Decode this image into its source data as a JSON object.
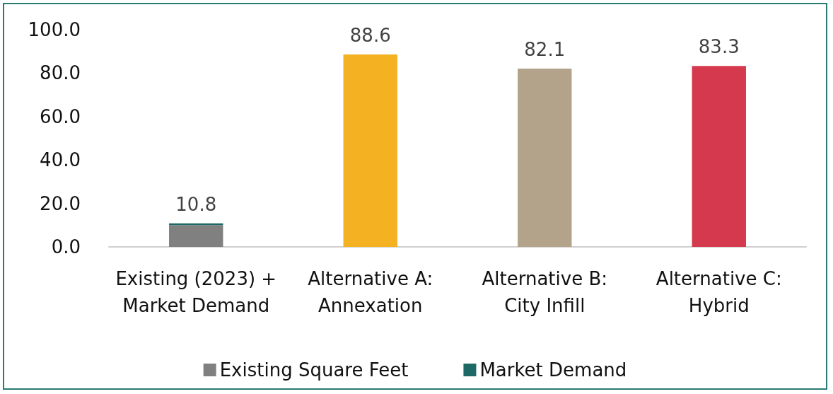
{
  "chart_data": {
    "type": "bar",
    "stacked": true,
    "categories": [
      "Existing (2023) +\nMarket Demand",
      "Alternative A:\nAnnexation",
      "Alternative B:\nCity Infill",
      "Alternative C:\nHybrid"
    ],
    "series": [
      {
        "name": "Existing Square Feet",
        "color": "#808080",
        "values": [
          10.0,
          null,
          null,
          null
        ]
      },
      {
        "name": "Market Demand",
        "color": "#1e6966",
        "values": [
          0.8,
          null,
          null,
          null
        ]
      },
      {
        "colors": [
          null,
          "#f4b223",
          "#b3a38a",
          "#d5394e"
        ],
        "values": [
          null,
          88.6,
          82.1,
          83.3
        ]
      }
    ],
    "totals": [
      "10.8",
      "88.6",
      "82.1",
      "83.3"
    ],
    "ylim": [
      0,
      100
    ],
    "yticks": [
      {
        "value": 0,
        "label": "0.0"
      },
      {
        "value": 20,
        "label": "20.0"
      },
      {
        "value": 40,
        "label": "40.0"
      },
      {
        "value": 60,
        "label": "60.0"
      },
      {
        "value": 80,
        "label": "80.0"
      },
      {
        "value": 100,
        "label": "100.0"
      }
    ],
    "grid": false,
    "legend": "bottom"
  }
}
